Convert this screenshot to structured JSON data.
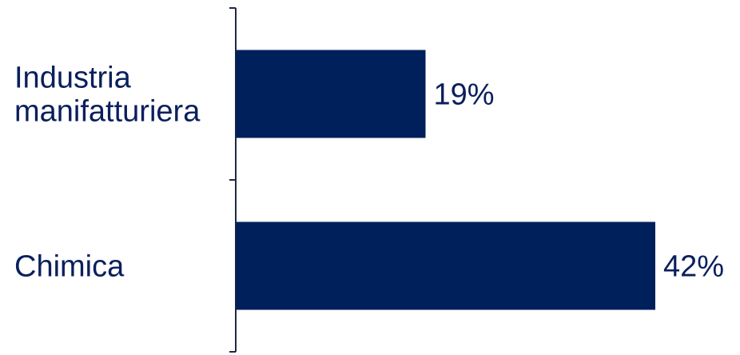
{
  "chart_data": {
    "type": "bar",
    "orientation": "horizontal",
    "categories": [
      [
        "Industria",
        "manifatturiera"
      ],
      [
        "Chimica"
      ]
    ],
    "values": [
      19,
      42
    ],
    "value_labels": [
      "19%",
      "42%"
    ],
    "value_unit": "%",
    "title": "",
    "xlabel": "",
    "ylabel": "",
    "grid": false,
    "legend": "none",
    "bar_color": "#00205b",
    "text_color": "#0a1f5c",
    "axis_color": "#1f2a44"
  }
}
